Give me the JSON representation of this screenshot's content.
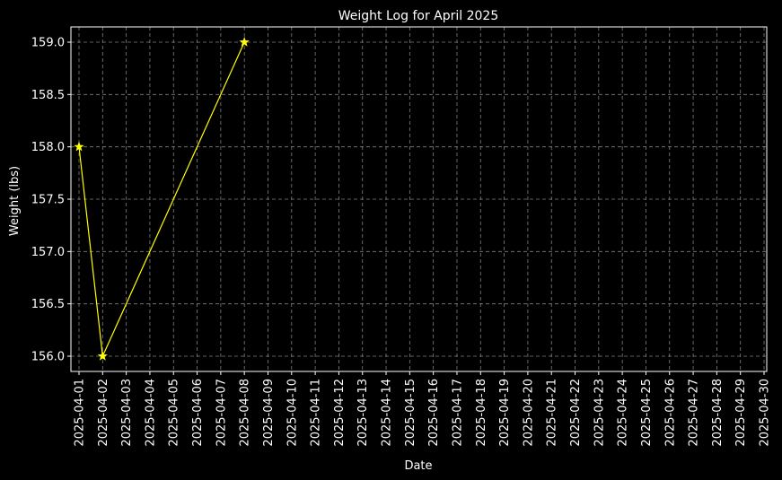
{
  "colors": {
    "background": "#000000",
    "axes": "#ffffff",
    "grid": "#808080",
    "series": "#ffff00"
  },
  "chart_data": {
    "type": "line",
    "title": "Weight Log for April 2025",
    "xlabel": "Date",
    "ylabel": "Weight (lbs)",
    "x_ticks": [
      "2025-04-01",
      "2025-04-02",
      "2025-04-03",
      "2025-04-04",
      "2025-04-05",
      "2025-04-06",
      "2025-04-07",
      "2025-04-08",
      "2025-04-09",
      "2025-04-10",
      "2025-04-11",
      "2025-04-12",
      "2025-04-13",
      "2025-04-14",
      "2025-04-15",
      "2025-04-16",
      "2025-04-17",
      "2025-04-18",
      "2025-04-19",
      "2025-04-20",
      "2025-04-21",
      "2025-04-22",
      "2025-04-23",
      "2025-04-24",
      "2025-04-25",
      "2025-04-26",
      "2025-04-27",
      "2025-04-28",
      "2025-04-29",
      "2025-04-30"
    ],
    "y_ticks": [
      "156.0",
      "156.5",
      "157.0",
      "157.5",
      "158.0",
      "158.5",
      "159.0"
    ],
    "ylim": [
      155.85,
      159.15
    ],
    "xlim": [
      "2025-04-01",
      "2025-04-30"
    ],
    "grid": true,
    "marker": "star",
    "series": [
      {
        "x": [
          "2025-04-01",
          "2025-04-02",
          "2025-04-08"
        ],
        "values": [
          158.0,
          156.0,
          159.0
        ]
      }
    ]
  }
}
